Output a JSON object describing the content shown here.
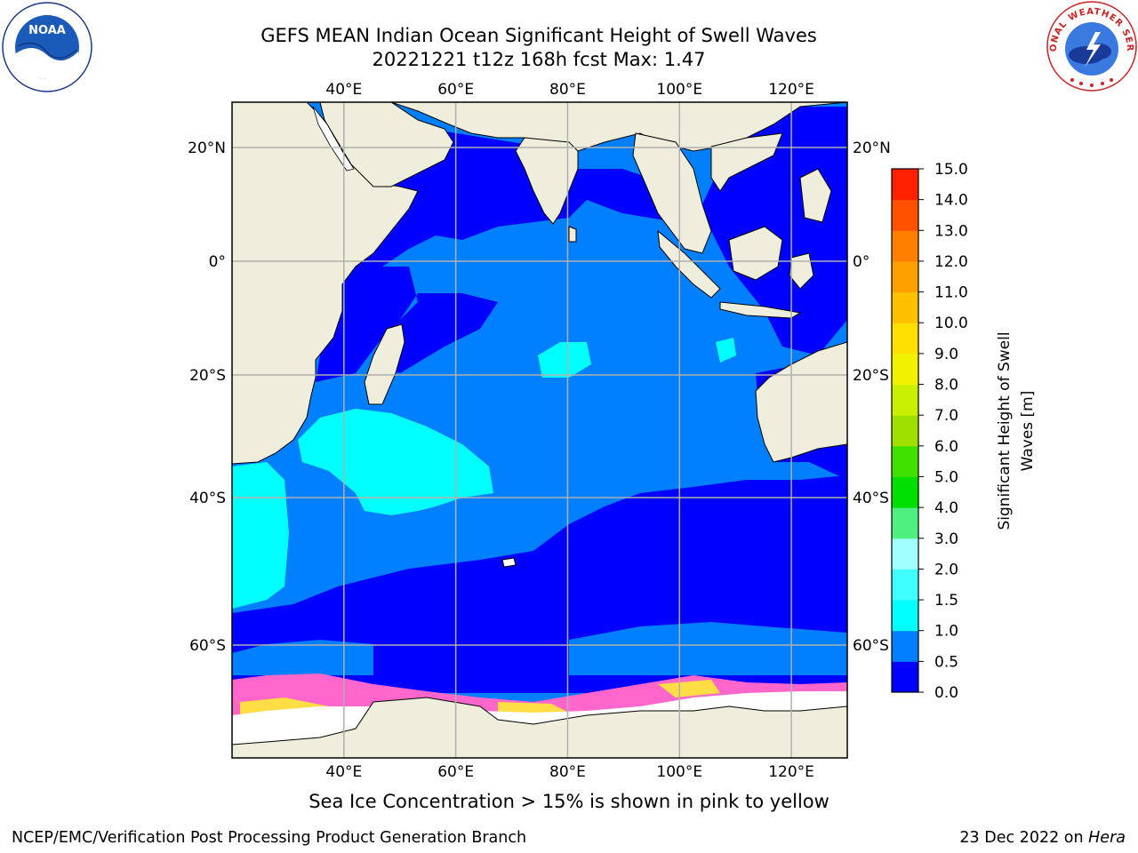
{
  "title": {
    "line1": "GEFS MEAN Indian Ocean Significant Height of Swell Waves",
    "line2": "20221221 t12z 168h fcst   Max: 1.47"
  },
  "caption": "Sea Ice Concentration > 15% is shown in pink to yellow",
  "footer": {
    "left": "NCEP/EMC/Verification Post Processing Product Generation Branch",
    "date": "23 Dec 2022 on ",
    "machine": "Hera"
  },
  "logos": {
    "noaa_text": "NOAA",
    "nws_text": "NATIONAL WEATHER SERVICE"
  },
  "map": {
    "lon_range": [
      20,
      130
    ],
    "lat_range": [
      -74,
      28
    ],
    "lon_ticks": [
      {
        "value": 40,
        "label": "40°E"
      },
      {
        "value": 60,
        "label": "60°E"
      },
      {
        "value": 80,
        "label": "80°E"
      },
      {
        "value": 100,
        "label": "100°E"
      },
      {
        "value": 120,
        "label": "120°E"
      }
    ],
    "lat_ticks": [
      {
        "value": 20,
        "label": "20°N"
      },
      {
        "value": 0,
        "label": "0°"
      },
      {
        "value": -20,
        "label": "20°S"
      },
      {
        "value": -40,
        "label": "40°S"
      },
      {
        "value": -60,
        "label": "60°S"
      }
    ],
    "grid": true
  },
  "colorbar": {
    "label": "Significant Height of Swell Waves [m]",
    "levels": [
      0.0,
      0.5,
      1.0,
      1.5,
      2.0,
      3.0,
      4.0,
      5.0,
      6.0,
      7.0,
      8.0,
      9.0,
      10.0,
      11.0,
      12.0,
      13.0,
      14.0,
      15.0
    ],
    "tick_labels": [
      "0.0",
      "0.5",
      "1.0",
      "1.5",
      "2.0",
      "3.0",
      "4.0",
      "5.0",
      "6.0",
      "7.0",
      "8.0",
      "9.0",
      "10.0",
      "11.0",
      "12.0",
      "13.0",
      "14.0",
      "15.0"
    ],
    "colors": [
      "#0000ff",
      "#0080ff",
      "#00ffff",
      "#40ffff",
      "#a0ffff",
      "#50f080",
      "#00e000",
      "#40e000",
      "#a0e000",
      "#c8f000",
      "#f0f000",
      "#ffe000",
      "#ffc000",
      "#ffa000",
      "#ff8000",
      "#ff5000",
      "#ff2000"
    ]
  },
  "colors": {
    "land": "#efeedc",
    "ocean_dark": "#0000ff",
    "ocean_mid": "#0080ff",
    "ocean_light": "#00ffff",
    "ice_pink": "#ff66cc",
    "ice_yellow": "#ffdd44"
  }
}
